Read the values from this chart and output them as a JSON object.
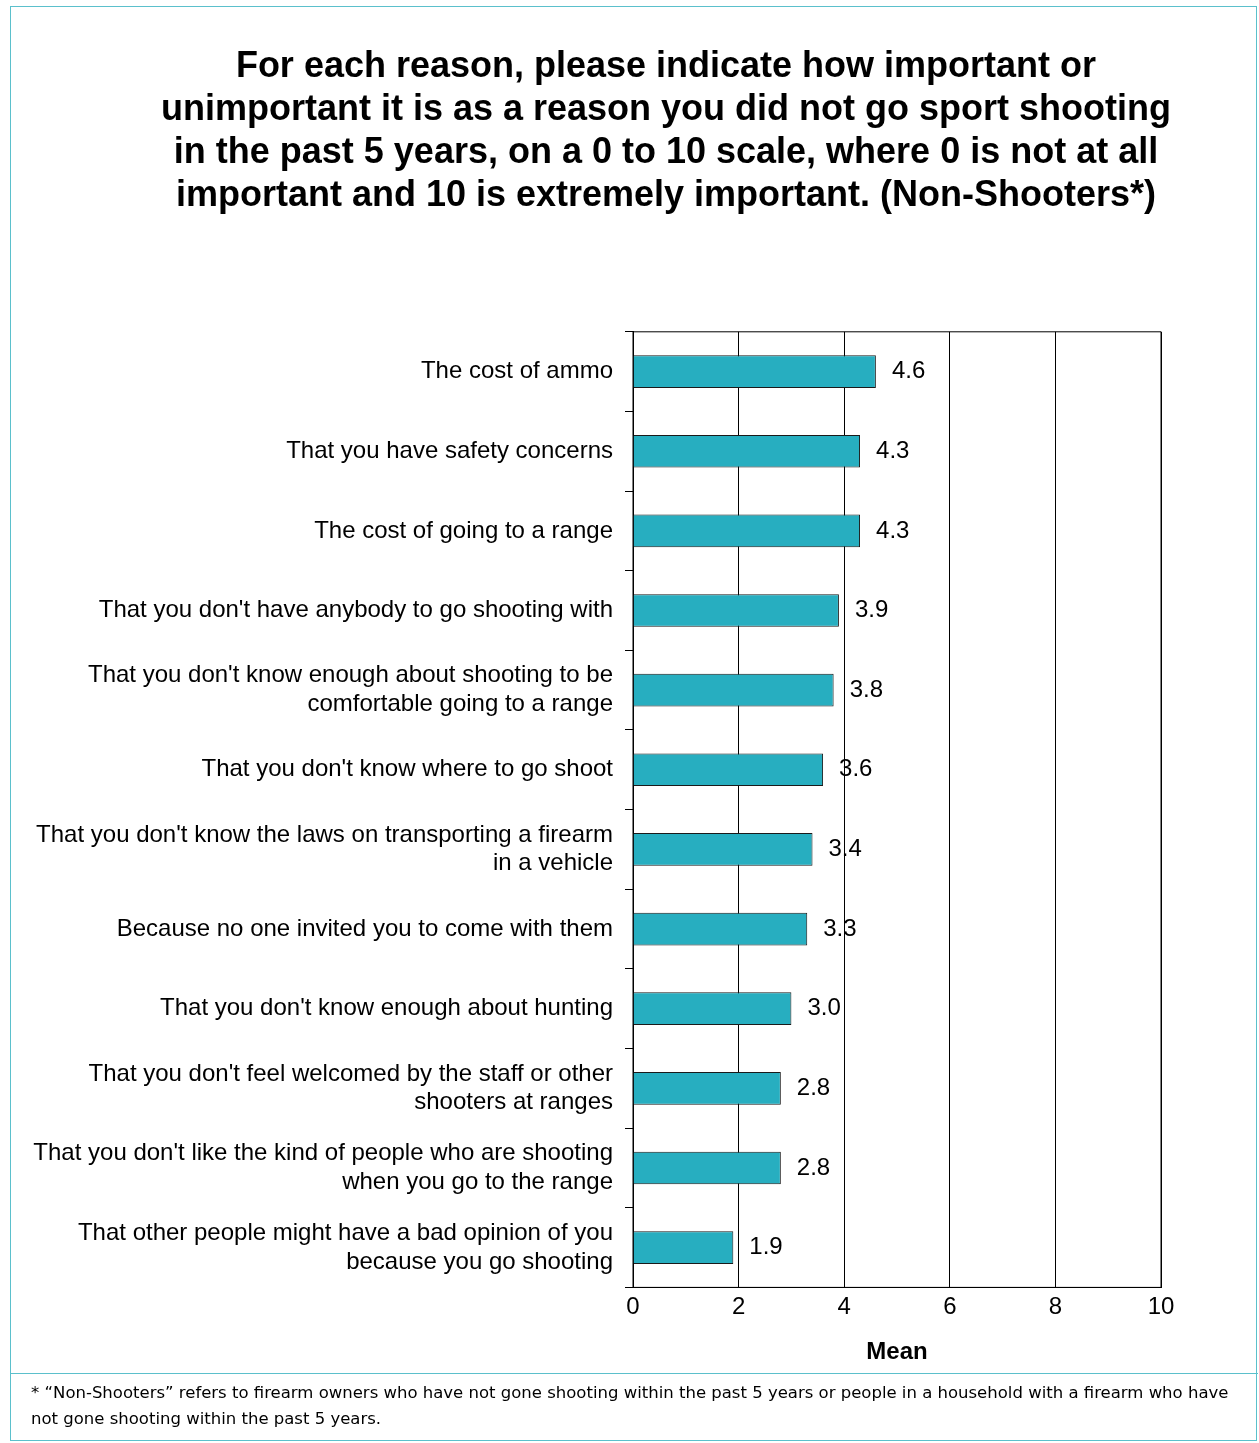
{
  "chart_data": {
    "type": "bar",
    "orientation": "horizontal",
    "title": "For each reason, please indicate how important or unimportant it is as a reason you did not go sport shooting in the past 5 years, on a 0 to 10 scale, where 0 is not at all important and 10 is extremely important. (Non-Shooters*)",
    "categories": [
      "The cost of ammo",
      "That you have safety concerns",
      "The cost of going to a range",
      "That you don't have anybody to go shooting with",
      "That you don't know enough about shooting to be comfortable going to a range",
      "That you don't know where to go shoot",
      "That you don't know the laws on transporting a firearm in a vehicle",
      "Because no one invited you to come with them",
      "That you don't know enough about hunting",
      "That you don't feel welcomed by the staff or other shooters at ranges",
      "That you don't like the kind of people who are shooting when you go to the range",
      "That other people might have a bad opinion of you because you go shooting"
    ],
    "values": [
      4.6,
      4.3,
      4.3,
      3.9,
      3.8,
      3.6,
      3.4,
      3.3,
      3.0,
      2.8,
      2.8,
      1.9
    ],
    "value_labels": [
      "4.6",
      "4.3",
      "4.3",
      "3.9",
      "3.8",
      "3.6",
      "3.4",
      "3.3",
      "3.0",
      "2.8",
      "2.8",
      "1.9"
    ],
    "color": "#27aec0",
    "xlim": [
      0,
      10
    ],
    "xticks": [
      0,
      2,
      4,
      6,
      8,
      10
    ],
    "xlabel": "Mean",
    "grid": "x",
    "legend": false,
    "annotations": [
      "* “Non-Shooters” refers to firearm owners who have not gone shooting within the past 5 years or people in a household with a firearm who have not gone shooting within the past 5 years."
    ]
  }
}
